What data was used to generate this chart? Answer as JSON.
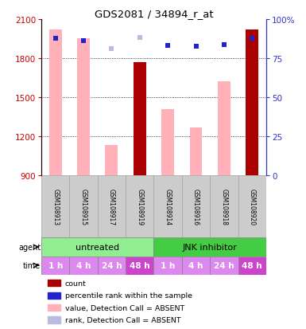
{
  "title": "GDS2081 / 34894_r_at",
  "samples": [
    "GSM108913",
    "GSM108915",
    "GSM108917",
    "GSM108919",
    "GSM108914",
    "GSM108916",
    "GSM108918",
    "GSM108920"
  ],
  "values": [
    2020,
    1950,
    1130,
    1770,
    1410,
    1265,
    1620,
    2020
  ],
  "value_absent": [
    true,
    true,
    true,
    false,
    true,
    true,
    true,
    false
  ],
  "ranks": [
    1950,
    1935,
    1870,
    1960,
    1900,
    1890,
    1905,
    1955
  ],
  "rank_absent": [
    false,
    false,
    true,
    true,
    false,
    false,
    false,
    false
  ],
  "ylim": [
    900,
    2100
  ],
  "yticks": [
    900,
    1200,
    1500,
    1800,
    2100
  ],
  "right_ytick_labels": [
    "0",
    "25",
    "50",
    "75",
    "100%"
  ],
  "right_ytick_vals": [
    900,
    1200,
    1500,
    1800,
    2100
  ],
  "agent_groups": [
    {
      "label": "untreated",
      "start": 0,
      "end": 4,
      "color": "#90ee90"
    },
    {
      "label": "JNK inhibitor",
      "start": 4,
      "end": 8,
      "color": "#44cc44"
    }
  ],
  "time_labels": [
    "1 h",
    "4 h",
    "24 h",
    "48 h",
    "1 h",
    "4 h",
    "24 h",
    "48 h"
  ],
  "time_colors": [
    "#dd88ee",
    "#dd88ee",
    "#dd88ee",
    "#cc44cc",
    "#dd88ee",
    "#dd88ee",
    "#dd88ee",
    "#cc44cc"
  ],
  "bar_color_absent": "#ffb0b8",
  "bar_color_present": "#aa0000",
  "rank_color_absent": "#b8bce0",
  "rank_color_present": "#2222cc",
  "legend_items": [
    {
      "color": "#aa0000",
      "label": "count"
    },
    {
      "color": "#2222cc",
      "label": "percentile rank within the sample"
    },
    {
      "color": "#ffb0b8",
      "label": "value, Detection Call = ABSENT"
    },
    {
      "color": "#b8bce0",
      "label": "rank, Detection Call = ABSENT"
    }
  ],
  "left_axis_color": "#cc0000",
  "right_axis_color": "#3333cc",
  "bar_width": 0.45,
  "sample_bg_color": "#cccccc",
  "sample_border_color": "#aaaaaa",
  "agent_border_color": "#888888",
  "fig_width": 3.85,
  "fig_height": 4.14,
  "fig_dpi": 100
}
